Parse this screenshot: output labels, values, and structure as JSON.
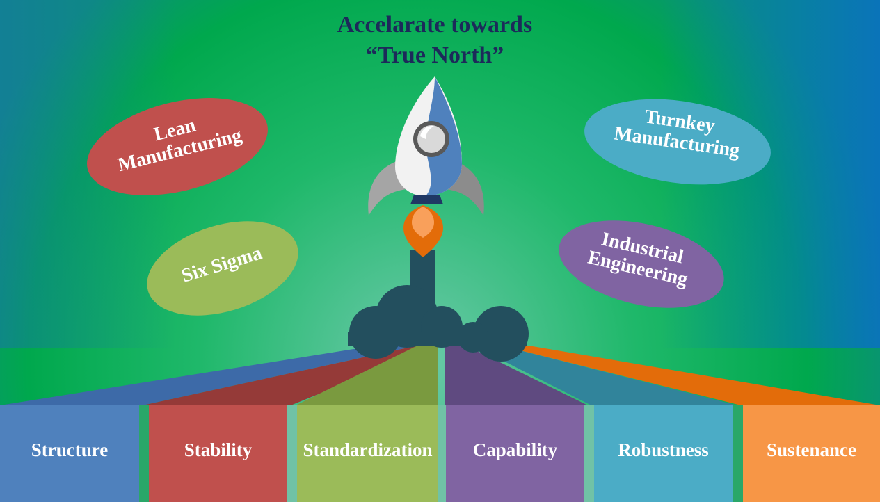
{
  "title": {
    "line1": "Accelarate towards",
    "line2": "“True North”"
  },
  "ovals": {
    "lean": {
      "line1": "Lean",
      "line2": "Manufacturing",
      "color": "#c0504d"
    },
    "six_sigma": {
      "label": "Six Sigma",
      "color": "#9bbb59"
    },
    "turnkey": {
      "line1": "Turnkey",
      "line2": "Manufacturing",
      "color": "#4bacc6"
    },
    "industrial": {
      "line1": "Industrial",
      "line2": "Engineering",
      "color": "#8064a2"
    }
  },
  "pillars": [
    {
      "label": "Structure",
      "color": "#4f81bd"
    },
    {
      "label": "Stability",
      "color": "#c0504d"
    },
    {
      "label": "Standardization",
      "color": "#9bbb59"
    },
    {
      "label": "Capability",
      "color": "#8064a2"
    },
    {
      "label": "Robustness",
      "color": "#4bacc6"
    },
    {
      "label": "Sustenance",
      "color": "#f79646"
    }
  ],
  "colors": {
    "background_top": "#00a651",
    "background_glow": "#5fc5a0",
    "title": "#1c2a5a",
    "rocket_blue": "#4f81bd",
    "flame": "#e36c09",
    "smoke": "#234f5e"
  }
}
